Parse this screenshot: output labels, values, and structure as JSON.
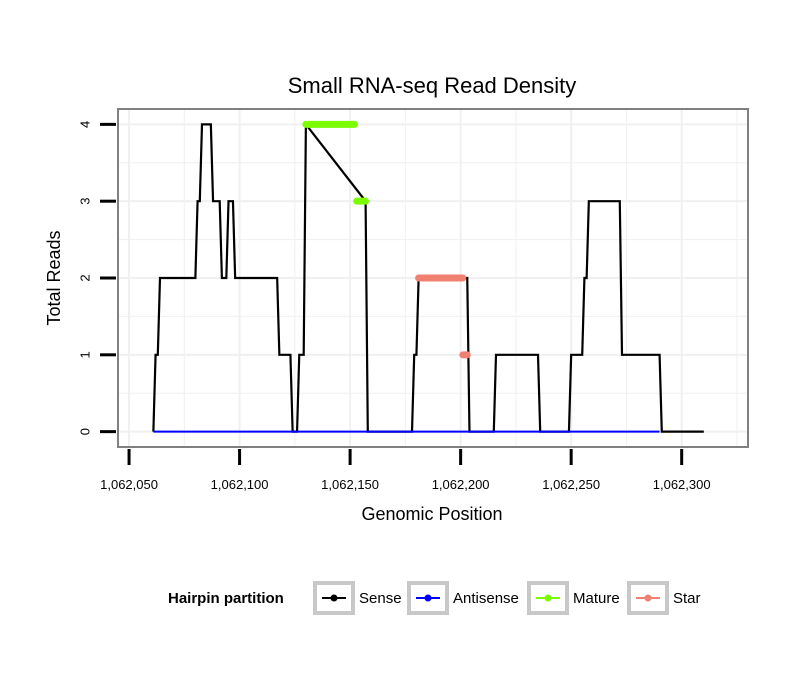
{
  "chart_data": {
    "type": "line",
    "title": "Small RNA-seq Read Density",
    "xlabel": "Genomic Position",
    "ylabel": "Total Reads",
    "xlim": [
      1062045,
      1062330
    ],
    "ylim": [
      -0.2,
      4.2
    ],
    "x_ticks": [
      1062050,
      1062100,
      1062150,
      1062200,
      1062250,
      1062300
    ],
    "x_tick_labels": [
      "1,062,050",
      "1,062,100",
      "1,062,150",
      "1,062,200",
      "1,062,250",
      "1,062,300"
    ],
    "y_ticks": [
      0,
      1,
      2,
      3,
      4
    ],
    "y_tick_labels": [
      "0",
      "1",
      "2",
      "3",
      "4"
    ],
    "grid": true,
    "legend": {
      "title": "Hairpin partition",
      "position": "bottom",
      "entries": [
        "Sense",
        "Antisense",
        "Mature",
        "Star"
      ]
    },
    "series": [
      {
        "name": "Sense",
        "color": "#000000",
        "style": "line",
        "x": [
          1062061,
          1062062,
          1062063,
          1062064,
          1062065,
          1062080,
          1062081,
          1062082,
          1062083,
          1062087,
          1062088,
          1062091,
          1062092,
          1062094,
          1062095,
          1062097,
          1062098,
          1062117,
          1062118,
          1062123,
          1062124,
          1062126,
          1062127,
          1062129,
          1062130,
          1062157,
          1062158,
          1062178,
          1062179,
          1062180,
          1062181,
          1062203,
          1062204,
          1062215,
          1062216,
          1062235,
          1062236,
          1062249,
          1062250,
          1062255,
          1062256,
          1062257,
          1062258,
          1062272,
          1062273,
          1062290,
          1062291,
          1062310
        ],
        "values": [
          0,
          1,
          1,
          2,
          2,
          2,
          3,
          3,
          4,
          4,
          3,
          3,
          2,
          2,
          3,
          3,
          2,
          2,
          1,
          1,
          0,
          0,
          1,
          1,
          4,
          3,
          0,
          0,
          1,
          1,
          2,
          2,
          0,
          0,
          1,
          1,
          0,
          0,
          1,
          1,
          2,
          2,
          3,
          3,
          1,
          1,
          0,
          0
        ]
      },
      {
        "name": "Antisense",
        "color": "#0000ff",
        "style": "line",
        "x": [
          1062061,
          1062290
        ],
        "values": [
          0,
          0
        ]
      },
      {
        "name": "Mature",
        "color": "#7cfc00",
        "style": "segments",
        "segments": [
          {
            "x": [
              1062130,
              1062152
            ],
            "y": 4
          },
          {
            "x": [
              1062153,
              1062157
            ],
            "y": 3
          }
        ]
      },
      {
        "name": "Star",
        "color": "#f08070",
        "style": "segments",
        "segments": [
          {
            "x": [
              1062181,
              1062201
            ],
            "y": 2
          },
          {
            "x": [
              1062201,
              1062203
            ],
            "y": 1
          }
        ]
      }
    ]
  }
}
